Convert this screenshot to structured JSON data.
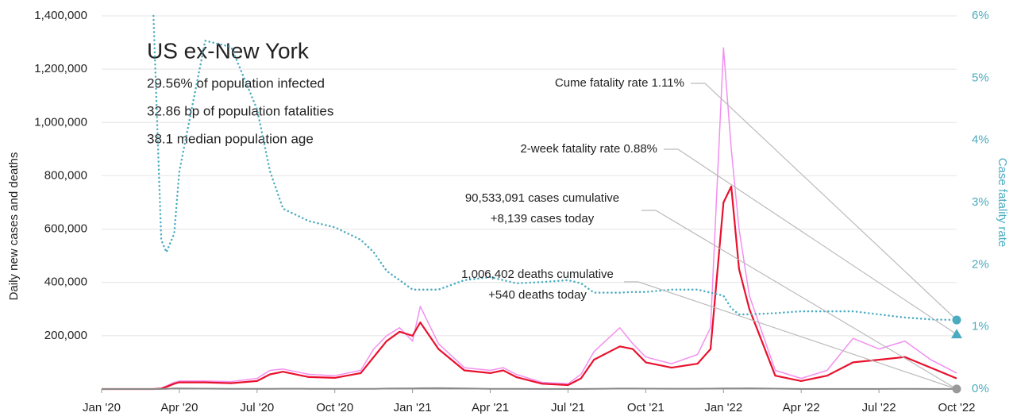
{
  "chart_data": {
    "type": "line",
    "title": "US ex-New York",
    "info": [
      "29.56% of population infected",
      "32.86 bp of population fatalities",
      "38.1 median population age"
    ],
    "y_label": "Daily new cases and deaths",
    "y2_label": "Case fatality rate",
    "x": [
      0,
      1,
      2,
      2.3,
      2.5,
      2.8,
      3,
      4,
      5,
      6,
      6.5,
      7,
      8,
      9,
      10,
      10.5,
      11,
      11.5,
      12,
      12.3,
      13,
      14,
      15,
      15.5,
      16,
      17,
      18,
      18.5,
      19,
      20,
      20.5,
      21,
      22,
      23,
      23.5,
      24,
      24.3,
      24.6,
      25,
      26,
      27,
      28,
      29,
      30,
      31,
      32,
      33
    ],
    "xlim": [
      0,
      33
    ],
    "xticks": [
      {
        "value": 0,
        "label": "Jan '20"
      },
      {
        "value": 3,
        "label": "Apr '20"
      },
      {
        "value": 6,
        "label": "Jul '20"
      },
      {
        "value": 9,
        "label": "Oct '20"
      },
      {
        "value": 12,
        "label": "Jan '21"
      },
      {
        "value": 15,
        "label": "Apr '21"
      },
      {
        "value": 18,
        "label": "Jul '21"
      },
      {
        "value": 21,
        "label": "Oct '21"
      },
      {
        "value": 24,
        "label": "Jan '22"
      },
      {
        "value": 27,
        "label": "Apr '22"
      },
      {
        "value": 30,
        "label": "Jul '22"
      },
      {
        "value": 33,
        "label": "Oct '22"
      }
    ],
    "ylim": [
      0,
      1400000
    ],
    "yticks": [
      {
        "value": 200000,
        "label": "200,000"
      },
      {
        "value": 400000,
        "label": "400,000"
      },
      {
        "value": 600000,
        "label": "600,000"
      },
      {
        "value": 800000,
        "label": "800,000"
      },
      {
        "value": 1000000,
        "label": "1,000,000"
      },
      {
        "value": 1200000,
        "label": "1,200,000"
      },
      {
        "value": 1400000,
        "label": "1,400,000"
      }
    ],
    "y2lim": [
      0,
      6
    ],
    "y2ticks": [
      {
        "value": 0,
        "label": "0%"
      },
      {
        "value": 1,
        "label": "1%"
      },
      {
        "value": 2,
        "label": "2%"
      },
      {
        "value": 3,
        "label": "3%"
      },
      {
        "value": 4,
        "label": "4%"
      },
      {
        "value": 5,
        "label": "5%"
      },
      {
        "value": 6,
        "label": "6%"
      }
    ],
    "grid": true,
    "series": [
      {
        "color": "#f28ff0",
        "width": 1.5,
        "values": [
          0,
          0,
          0,
          3000,
          12000,
          25000,
          30000,
          30000,
          28000,
          40000,
          70000,
          75000,
          55000,
          50000,
          70000,
          150000,
          200000,
          230000,
          180000,
          310000,
          170000,
          80000,
          70000,
          80000,
          55000,
          25000,
          20000,
          55000,
          140000,
          230000,
          170000,
          120000,
          95000,
          130000,
          230000,
          1280000,
          900000,
          600000,
          350000,
          70000,
          40000,
          70000,
          190000,
          150000,
          180000,
          110000,
          60000
        ]
      },
      {
        "color": "#e8112d",
        "width": 2.2,
        "values": [
          0,
          0,
          0,
          2000,
          8000,
          20000,
          25000,
          25000,
          22000,
          30000,
          55000,
          65000,
          45000,
          42000,
          60000,
          120000,
          180000,
          215000,
          200000,
          250000,
          150000,
          70000,
          60000,
          70000,
          45000,
          20000,
          15000,
          40000,
          110000,
          160000,
          150000,
          100000,
          80000,
          95000,
          150000,
          700000,
          760000,
          450000,
          300000,
          50000,
          30000,
          50000,
          100000,
          110000,
          120000,
          80000,
          40000
        ]
      },
      {
        "color": "#888888",
        "width": 2,
        "values": [
          0,
          0,
          0,
          200,
          800,
          2000,
          2200,
          1500,
          900,
          700,
          800,
          1100,
          1000,
          800,
          700,
          1000,
          1700,
          2200,
          2500,
          3000,
          3200,
          2000,
          800,
          700,
          600,
          300,
          250,
          400,
          1000,
          1800,
          1900,
          1600,
          1300,
          1200,
          1500,
          2000,
          2300,
          2500,
          2600,
          1500,
          400,
          300,
          350,
          400,
          450,
          400,
          350
        ]
      },
      {
        "color": "#4aacc0",
        "width": 2.5,
        "dotted": true,
        "axis": "y2",
        "values": [
          null,
          null,
          6,
          2.4,
          2.2,
          2.5,
          3.5,
          5.6,
          5.5,
          4.5,
          3.5,
          2.9,
          2.7,
          2.6,
          2.4,
          2.2,
          1.9,
          1.75,
          1.6,
          1.6,
          1.6,
          1.75,
          1.8,
          1.75,
          1.7,
          1.72,
          1.75,
          1.7,
          1.55,
          1.55,
          1.56,
          1.56,
          1.6,
          1.6,
          1.55,
          1.5,
          1.3,
          1.2,
          1.2,
          1.22,
          1.25,
          1.25,
          1.25,
          1.2,
          1.15,
          1.12,
          1.11
        ]
      }
    ],
    "cume_fatality_rate": 1.11,
    "two_week_fatality_rate": 0.88,
    "annotations": [
      {
        "lines": [
          "Cume fatality rate 1.11%"
        ]
      },
      {
        "lines": [
          "2-week fatality rate 0.88%"
        ]
      },
      {
        "lines": [
          "90,533,091 cases cumulative",
          "+8,139 cases today"
        ]
      },
      {
        "lines": [
          "1,006,402 deaths cumulative",
          "+540 deaths today"
        ]
      }
    ]
  }
}
